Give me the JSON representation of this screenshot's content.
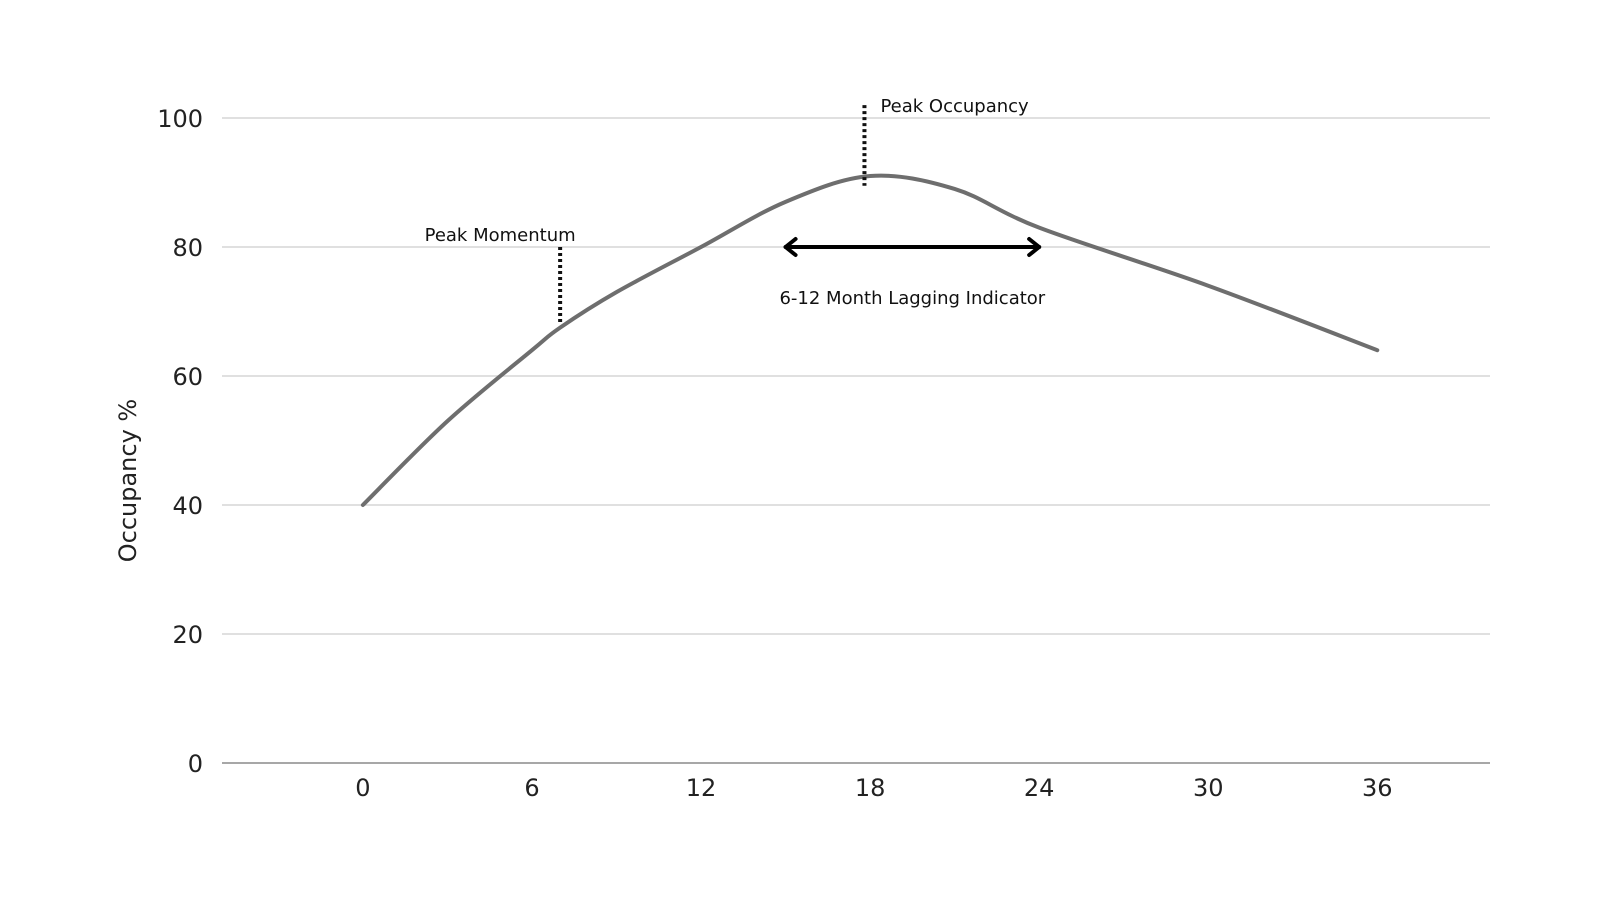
{
  "chart_data": {
    "type": "line",
    "title": "",
    "xlabel": "",
    "ylabel": "Occupancy %",
    "xlim": [
      -5,
      40
    ],
    "ylim": [
      0,
      100
    ],
    "x_ticks": [
      0,
      6,
      12,
      18,
      24,
      30,
      36
    ],
    "y_ticks": [
      0,
      20,
      40,
      60,
      80,
      100
    ],
    "grid": true,
    "series": [
      {
        "color": "#6e6e6e",
        "x": [
          0,
          3,
          6,
          7,
          9,
          12,
          15,
          18,
          21,
          24,
          30,
          36
        ],
        "y": [
          40,
          53,
          64,
          67.5,
          73,
          80,
          87,
          91,
          89,
          83,
          74,
          64
        ]
      }
    ],
    "annotations": {
      "peak_momentum": {
        "label": "Peak Momentum",
        "x": 7,
        "y_top": 80,
        "y_bottom": 68
      },
      "peak_occupancy": {
        "label": "Peak Occupancy",
        "x": 17.8,
        "y_top": 102,
        "y_bottom": 89.5
      },
      "lag_arrow": {
        "label": "6-12 Month Lagging Indicator",
        "x_start": 15,
        "x_end": 24,
        "y": 80
      }
    }
  }
}
